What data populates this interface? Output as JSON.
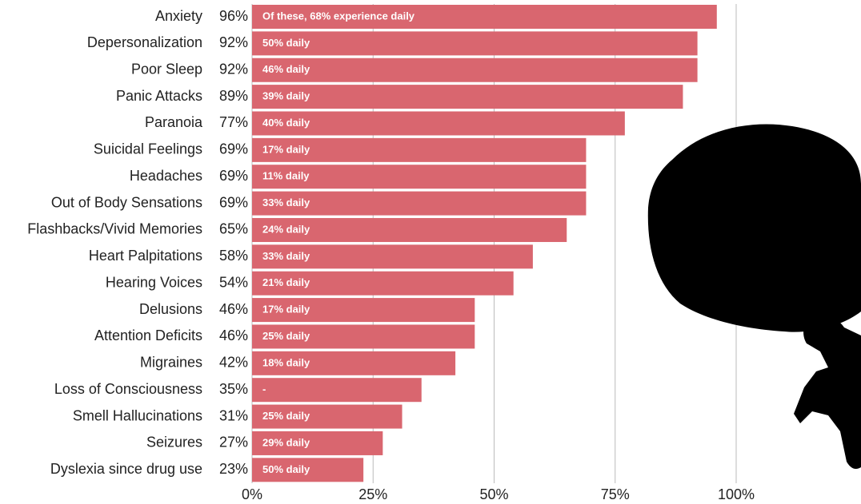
{
  "chart_data": {
    "type": "barh",
    "categories": [
      "Anxiety",
      "Depersonalization",
      "Poor Sleep",
      "Panic Attacks",
      "Paranoia",
      "Suicidal Feelings",
      "Headaches",
      "Out of Body Sensations",
      "Flashbacks/Vivid Memories",
      "Heart Palpitations",
      "Hearing Voices",
      "Delusions",
      "Attention Deficits",
      "Migraines",
      "Loss of Consciousness",
      "Smell Hallucinations",
      "Seizures",
      "Dyslexia since drug use"
    ],
    "values": [
      96,
      92,
      92,
      89,
      77,
      69,
      69,
      69,
      65,
      58,
      54,
      46,
      46,
      42,
      35,
      31,
      27,
      23
    ],
    "value_labels": [
      "96%",
      "92%",
      "92%",
      "89%",
      "77%",
      "69%",
      "69%",
      "69%",
      "65%",
      "58%",
      "54%",
      "46%",
      "46%",
      "42%",
      "35%",
      "31%",
      "27%",
      "23%"
    ],
    "annotations": [
      "Of these, 68% experience daily",
      "50% daily",
      "46% daily",
      "39% daily",
      "40% daily",
      "17% daily",
      "11% daily",
      "33% daily",
      "24% daily",
      "33% daily",
      "21% daily",
      "17% daily",
      "25% daily",
      "18% daily",
      "-",
      "25% daily",
      "29% daily",
      "50% daily"
    ],
    "color": "#d9666f",
    "xlim": [
      0,
      100
    ],
    "xticks": [
      {
        "value": 0,
        "label": "0%"
      },
      {
        "value": 25,
        "label": "25%"
      },
      {
        "value": 50,
        "label": "50%"
      },
      {
        "value": 75,
        "label": "75%"
      },
      {
        "value": 100,
        "label": "100%"
      }
    ],
    "grid": true
  }
}
